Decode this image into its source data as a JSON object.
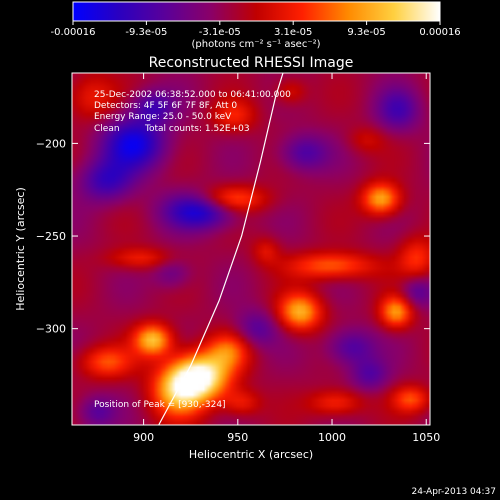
{
  "colorbar": {
    "tick_labels": [
      "-0.00016",
      "-9.3e-05",
      "-3.1e-05",
      "3.1e-05",
      "9.3e-05",
      "0.00016"
    ],
    "units": "(photons cm⁻² s⁻¹ asec⁻²)",
    "range": [
      -0.00016,
      0.00016
    ],
    "colormap_stops": [
      "#0000ff",
      "#2a00c0",
      "#5a009a",
      "#8a0068",
      "#c00000",
      "#ff2000",
      "#ff8a00",
      "#ffd040",
      "#ffffff"
    ]
  },
  "chart_data": {
    "type": "heatmap",
    "title": "Reconstructed RHESSI Image",
    "xlabel": "Heliocentric X (arcsec)",
    "ylabel": "Heliocentric Y (arcsec)",
    "xlim": [
      862,
      1052
    ],
    "ylim": [
      -352,
      -162
    ],
    "x_ticks": [
      900,
      950,
      1000,
      1050
    ],
    "y_ticks": [
      -200,
      -250,
      -300
    ],
    "annotations": [
      "25-Dec-2002 06:38:52.000 to 06:41:00.000",
      "Detectors: 4F 5F 6F 7F 8F, Att 0",
      "Energy Range: 25.0 - 50.0 keV",
      "Clean",
      "Total counts: 1.52E+03"
    ],
    "peak_label": "Position of Peak = [930,-324]",
    "peak": [
      930,
      -324
    ],
    "limb_curve": [
      [
        908,
        -352
      ],
      [
        925,
        -320
      ],
      [
        940,
        -285
      ],
      [
        952,
        -250
      ],
      [
        962,
        -210
      ],
      [
        970,
        -175
      ],
      [
        974,
        -162
      ]
    ],
    "sources": [
      {
        "x": 930,
        "y": -326,
        "sx": 11,
        "sy": 9,
        "amp": 1.6
      },
      {
        "x": 918,
        "y": -334,
        "sx": 10,
        "sy": 10,
        "amp": 1.0
      },
      {
        "x": 945,
        "y": -312,
        "sx": 8,
        "sy": 7,
        "amp": 0.7
      },
      {
        "x": 905,
        "y": -306,
        "sx": 7,
        "sy": 6,
        "amp": 1.2
      },
      {
        "x": 983,
        "y": -291,
        "sx": 8,
        "sy": 7,
        "amp": 1.1
      },
      {
        "x": 1034,
        "y": -291,
        "sx": 6,
        "sy": 6,
        "amp": 1.0
      },
      {
        "x": 1000,
        "y": -266,
        "sx": 16,
        "sy": 5,
        "amp": 0.8
      },
      {
        "x": 1045,
        "y": -262,
        "sx": 7,
        "sy": 8,
        "amp": 0.6
      },
      {
        "x": 1026,
        "y": -230,
        "sx": 7,
        "sy": 6,
        "amp": 1.1
      },
      {
        "x": 946,
        "y": -230,
        "sx": 13,
        "sy": 5,
        "amp": 0.8
      },
      {
        "x": 898,
        "y": -262,
        "sx": 12,
        "sy": 4,
        "amp": 0.5
      },
      {
        "x": 880,
        "y": -318,
        "sx": 10,
        "sy": 6,
        "amp": 0.7
      },
      {
        "x": 948,
        "y": -185,
        "sx": 8,
        "sy": 6,
        "amp": 0.5
      },
      {
        "x": 1002,
        "y": -340,
        "sx": 10,
        "sy": 5,
        "amp": 0.6
      },
      {
        "x": 1042,
        "y": -338,
        "sx": 7,
        "sy": 5,
        "amp": 0.7
      },
      {
        "x": 978,
        "y": -172,
        "sx": 6,
        "sy": 5,
        "amp": 0.4
      },
      {
        "x": 1018,
        "y": -198,
        "sx": 7,
        "sy": 5,
        "amp": 0.3
      },
      {
        "x": 965,
        "y": -258,
        "sx": 5,
        "sy": 5,
        "amp": 0.4
      },
      {
        "x": 872,
        "y": -175,
        "sx": 9,
        "sy": 9,
        "amp": 0.5
      },
      {
        "x": 952,
        "y": -340,
        "sx": 7,
        "sy": 5,
        "amp": 0.5
      }
    ],
    "negative_sources": [
      {
        "x": 895,
        "y": -200,
        "sx": 12,
        "sy": 10,
        "amp": 1.0
      },
      {
        "x": 930,
        "y": -236,
        "sx": 13,
        "sy": 7,
        "amp": 1.0
      },
      {
        "x": 880,
        "y": -220,
        "sx": 10,
        "sy": 8,
        "amp": 0.7
      },
      {
        "x": 905,
        "y": -180,
        "sx": 8,
        "sy": 6,
        "amp": 0.6
      },
      {
        "x": 985,
        "y": -205,
        "sx": 9,
        "sy": 7,
        "amp": 0.6
      },
      {
        "x": 1035,
        "y": -182,
        "sx": 8,
        "sy": 8,
        "amp": 0.6
      },
      {
        "x": 1010,
        "y": -310,
        "sx": 9,
        "sy": 7,
        "amp": 0.6
      },
      {
        "x": 1020,
        "y": -325,
        "sx": 7,
        "sy": 6,
        "amp": 0.5
      },
      {
        "x": 960,
        "y": -300,
        "sx": 8,
        "sy": 7,
        "amp": 0.5
      },
      {
        "x": 1045,
        "y": -280,
        "sx": 6,
        "sy": 6,
        "amp": 0.5
      },
      {
        "x": 875,
        "y": -345,
        "sx": 7,
        "sy": 6,
        "amp": 0.5
      },
      {
        "x": 915,
        "y": -270,
        "sx": 7,
        "sy": 6,
        "amp": 0.4
      }
    ],
    "grid": false
  },
  "footer": {
    "timestamp": "24-Apr-2013 04:37"
  }
}
